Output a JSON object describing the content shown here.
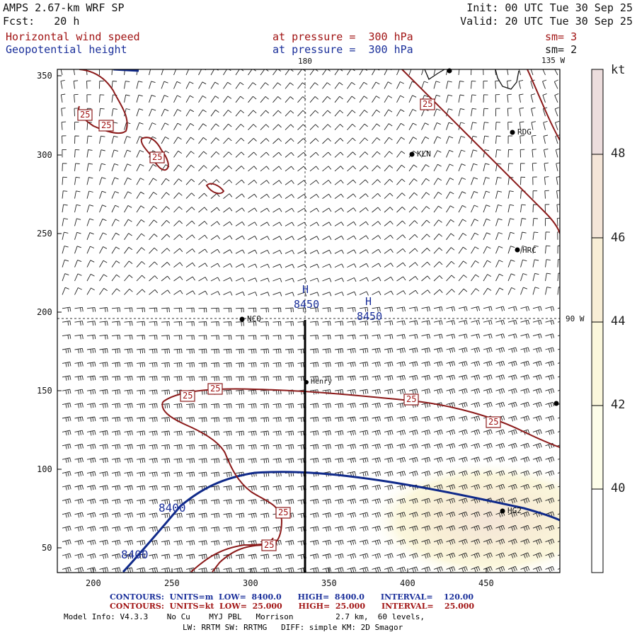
{
  "header": {
    "title": "AMPS 2.67-km WRF SP",
    "forecast": "Fcst:   20 h",
    "init": "Init: 00 UTC Tue 30 Sep 25",
    "valid": "Valid: 20 UTC Tue 30 Sep 25",
    "field1": "Horizontal wind speed",
    "field2": "Geopotential height",
    "level1": "at pressure =  300 hPa",
    "level2": "at pressure =  300 hPa",
    "sm1": "sm= 3",
    "sm2": "sm= 2"
  },
  "axes": {
    "x_ticks": [
      "200",
      "250",
      "300",
      "350",
      "400",
      "450"
    ],
    "y_ticks": [
      "350",
      "300",
      "250",
      "200",
      "150",
      "100",
      "50"
    ],
    "lon_180": "180",
    "lon_135w": "135 W",
    "lon_90w": "90 W"
  },
  "colorbar": {
    "unit": "kt",
    "labels": [
      "48",
      "46",
      "44",
      "42",
      "40"
    ],
    "colors": [
      "#ecdddd",
      "#f4e5d8",
      "#f8eed6",
      "#fbf7dc",
      "#fdfde9",
      "#ffffff"
    ]
  },
  "stations": [
    {
      "name": "RDG",
      "x": 467,
      "y": 313
    },
    {
      "name": "KLN",
      "x": 401,
      "y": 300
    },
    {
      "name": "HRC",
      "x": 467,
      "y": 239
    },
    {
      "name": "NCQ",
      "x": 294,
      "y": 195
    },
    {
      "name": "Henry",
      "x": 335,
      "y": 155
    },
    {
      "name": "HG2",
      "x": 461,
      "y": 73
    }
  ],
  "map_labels": {
    "high1": "H",
    "high1_value": "8450",
    "high2": "H",
    "high2_value": "8450",
    "height_8400_a": "8400",
    "height_8400_b": "8400",
    "speed_label": "25"
  },
  "footer": {
    "contours1": "CONTOURS:  UNITS=m  LOW=  8400.0      HIGH=  8400.0      INTERVAL=    120.00",
    "contours2": "CONTOURS:  UNITS=kt  LOW=  25.000      HIGH=  25.000      INTERVAL=    25.000",
    "model_info": "Model Info: V4.3.3    No Cu    MYJ PBL   Morrison         2.7 km,  60 levels,",
    "physics": "LW: RRTM SW: RRTMG   DIFF: simple KM: 2D Smagor"
  }
}
